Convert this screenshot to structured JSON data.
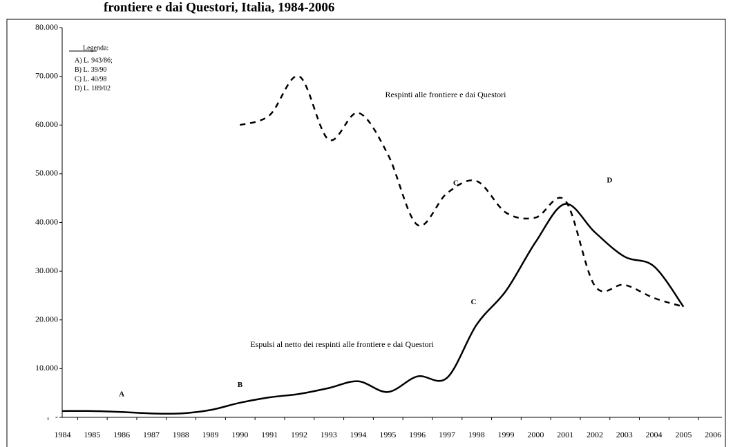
{
  "chart_data": {
    "type": "line",
    "title": "frontiere e dai Questori, Italia, 1984-2006",
    "x": [
      1984,
      1985,
      1986,
      1987,
      1988,
      1989,
      1990,
      1991,
      1992,
      1993,
      1994,
      1995,
      1996,
      1997,
      1998,
      1999,
      2000,
      2001,
      2002,
      2003,
      2004,
      2005
    ],
    "series": [
      {
        "name": "Respinti alle frontiere e dai Questori",
        "color": "#000000",
        "dash": true,
        "values": [
          null,
          null,
          null,
          null,
          null,
          null,
          60000,
          62000,
          70000,
          57000,
          62500,
          54000,
          39500,
          46000,
          48500,
          42000,
          41000,
          44500,
          27000,
          27200,
          24500,
          22700
        ]
      },
      {
        "name": "Espulsi al netto dei respinti alle frontiere e dai Questori",
        "color": "#000000",
        "dash": false,
        "values": [
          1300,
          1300,
          1100,
          800,
          800,
          1500,
          3000,
          4100,
          4800,
          6000,
          7400,
          5200,
          8400,
          8100,
          19000,
          26000,
          36000,
          43800,
          38000,
          33000,
          31000,
          22700
        ]
      }
    ],
    "xlim": [
      1983.8,
      2006.3
    ],
    "xticks": [
      1984,
      1985,
      1986,
      1987,
      1988,
      1989,
      1990,
      1991,
      1992,
      1993,
      1994,
      1995,
      1996,
      1997,
      1998,
      1999,
      2000,
      2001,
      2002,
      2003,
      2004,
      2005,
      2006
    ],
    "ylim": [
      0,
      80000
    ],
    "yticks": [
      {
        "value": 0,
        "label": "-"
      },
      {
        "value": 10000,
        "label": "10.000"
      },
      {
        "value": 20000,
        "label": "20.000"
      },
      {
        "value": 30000,
        "label": "30.000"
      },
      {
        "value": 40000,
        "label": "40.000"
      },
      {
        "value": 50000,
        "label": "50.000"
      },
      {
        "value": 60000,
        "label": "60.000"
      },
      {
        "value": 70000,
        "label": "70.000"
      },
      {
        "value": 80000,
        "label": "80.000"
      }
    ],
    "legend_title": "Legenda:",
    "legend_items": [
      "A) L. 943/86;",
      "B) L. 39/90",
      "C) L. 40/98",
      "D) L. 189/02"
    ],
    "annotations": [
      {
        "text": "A",
        "x": 1986,
        "y": 4700
      },
      {
        "text": "B",
        "x": 1990,
        "y": 6600
      },
      {
        "text": "C",
        "x": 1997.3,
        "y": 48000
      },
      {
        "text": "C",
        "x": 1997.9,
        "y": 23600
      },
      {
        "text": "D",
        "x": 2002.5,
        "y": 48600
      }
    ]
  }
}
